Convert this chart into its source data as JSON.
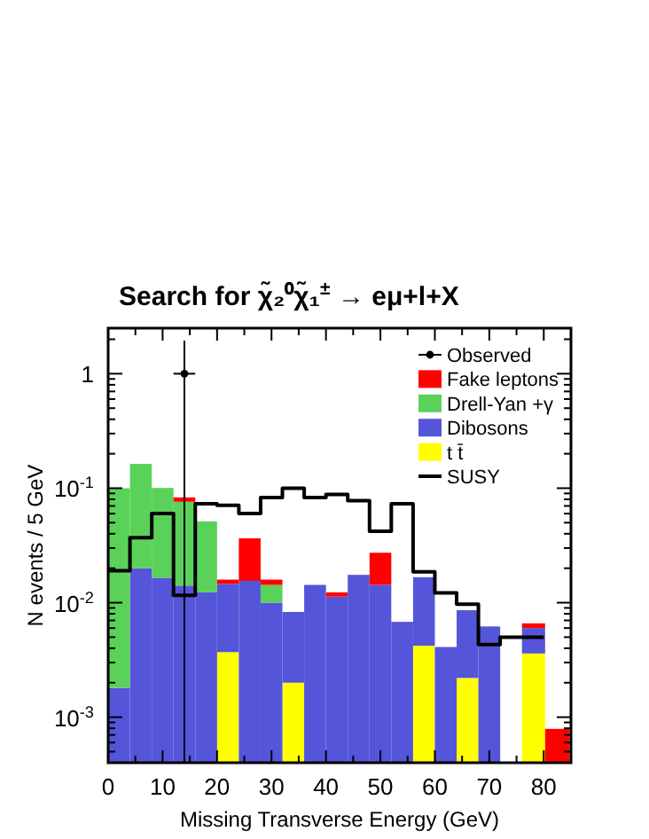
{
  "chart_data": {
    "type": "bar",
    "title": "Search for χ̃₂⁰χ̃₁$^{±}$ → eμ+l+X",
    "xlabel": "Missing Transverse Energy (GeV)",
    "ylabel": "N events / 5 GeV",
    "x": [
      2,
      6,
      10,
      14,
      18,
      22,
      26,
      30,
      34,
      38,
      42,
      46,
      50,
      54,
      58,
      62,
      66,
      70,
      74,
      78,
      82.5
    ],
    "stacked": true,
    "log": "y",
    "legend": "top right",
    "xlim": [
      0,
      85
    ],
    "xticks": [
      0,
      {
        "value": 5,
        "label": null
      },
      10,
      {
        "value": 15,
        "label": null
      },
      20,
      {
        "value": 25,
        "label": null
      },
      30,
      {
        "value": 35,
        "label": null
      },
      40,
      {
        "value": 45,
        "label": null
      },
      50,
      {
        "value": 55,
        "label": null
      },
      60,
      {
        "value": 65,
        "label": null
      },
      70,
      {
        "value": 75,
        "label": null
      },
      80,
      {
        "value": 85,
        "label": null
      }
    ],
    "ylim": [
      0.0004,
      2.5
    ],
    "yticks": [
      {
        "value": 0.0004,
        "label": null
      },
      {
        "value": 0.0005,
        "label": null
      },
      {
        "value": 0.0006,
        "label": null
      },
      {
        "value": 0.0007,
        "label": null
      },
      {
        "value": 0.0008,
        "label": null
      },
      {
        "value": 0.0009,
        "label": null
      },
      {
        "value": 0.001,
        "label": "10$^{-3}$"
      },
      {
        "value": 0.002,
        "label": null
      },
      {
        "value": 0.003,
        "label": null
      },
      {
        "value": 0.004,
        "label": null
      },
      {
        "value": 0.005,
        "label": null
      },
      {
        "value": 0.006,
        "label": null
      },
      {
        "value": 0.007,
        "label": null
      },
      {
        "value": 0.008,
        "label": null
      },
      {
        "value": 0.009,
        "label": null
      },
      {
        "value": 0.01,
        "label": "10$^{-2}$"
      },
      {
        "value": 0.02,
        "label": null
      },
      {
        "value": 0.03,
        "label": null
      },
      {
        "value": 0.04,
        "label": null
      },
      {
        "value": 0.05,
        "label": null
      },
      {
        "value": 0.06,
        "label": null
      },
      {
        "value": 0.07,
        "label": null
      },
      {
        "value": 0.08,
        "label": null
      },
      {
        "value": 0.09,
        "label": null
      },
      {
        "value": 0.1,
        "label": "10$^{-1}$"
      },
      {
        "value": 0.2,
        "label": null
      },
      {
        "value": 0.3,
        "label": null
      },
      {
        "value": 0.4,
        "label": null
      },
      {
        "value": 0.5,
        "label": null
      },
      {
        "value": 0.6,
        "label": null
      },
      {
        "value": 0.7,
        "label": null
      },
      {
        "value": 0.8,
        "label": null
      },
      {
        "value": 0.9,
        "label": null
      },
      {
        "value": 1,
        "label": "1"
      },
      {
        "value": 2,
        "label": null
      }
    ],
    "series": [
      {
        "name": "SUSY",
        "type": "step",
        "color": "#000000",
        "x": [
          0,
          4,
          8,
          12,
          16,
          20,
          24,
          28,
          32,
          36,
          40,
          44,
          48,
          52,
          56,
          60,
          64,
          68,
          72,
          76,
          80
        ],
        "values": [
          0.019,
          0.037,
          0.06,
          0.0116,
          0.073,
          0.071,
          0.06,
          0.083,
          0.1,
          0.083,
          0.088,
          0.078,
          0.042,
          0.073,
          0.0186,
          0.0122,
          0.0097,
          0.0043,
          0.005,
          0.005,
          0.005
        ]
      },
      {
        "name": "t t̄",
        "color": "#ffff00",
        "values": [
          null,
          null,
          null,
          null,
          null,
          0.0037,
          null,
          null,
          0.002,
          null,
          null,
          null,
          null,
          null,
          0.0042,
          null,
          0.0022,
          null,
          null,
          0.0036,
          null
        ]
      },
      {
        "name": "Dibosons",
        "color": "#5555d9",
        "values": [
          0.0018,
          0.02,
          0.0165,
          0.0141,
          0.0123,
          0.0109,
          0.0155,
          0.01,
          0.0063,
          0.0143,
          0.0113,
          0.0175,
          0.0143,
          0.0068,
          0.0125,
          0.0041,
          0.0064,
          0.0062,
          null,
          0.0024,
          null
        ]
      },
      {
        "name": "Drell-Yan +γ",
        "color": "#5ad25a",
        "values": [
          0.098,
          0.143,
          0.084,
          0.062,
          0.039,
          null,
          null,
          0.0043,
          null,
          null,
          null,
          null,
          null,
          null,
          null,
          null,
          null,
          null,
          null,
          null,
          null
        ]
      },
      {
        "name": "Fake leptons",
        "color": "#ff0000",
        "values": [
          null,
          null,
          null,
          0.007,
          null,
          0.0013,
          0.021,
          0.0016,
          null,
          null,
          0.001,
          null,
          0.013,
          null,
          null,
          null,
          null,
          null,
          null,
          0.0006,
          0.00079
        ]
      },
      {
        "name": "Observed",
        "type": "scatter",
        "color": "#000000",
        "marker": "circle",
        "x": [
          14
        ],
        "values": [
          1
        ],
        "xerrors": [
          2
        ],
        "errors": [
          [
            0.0004,
            1.95
          ]
        ]
      }
    ]
  }
}
